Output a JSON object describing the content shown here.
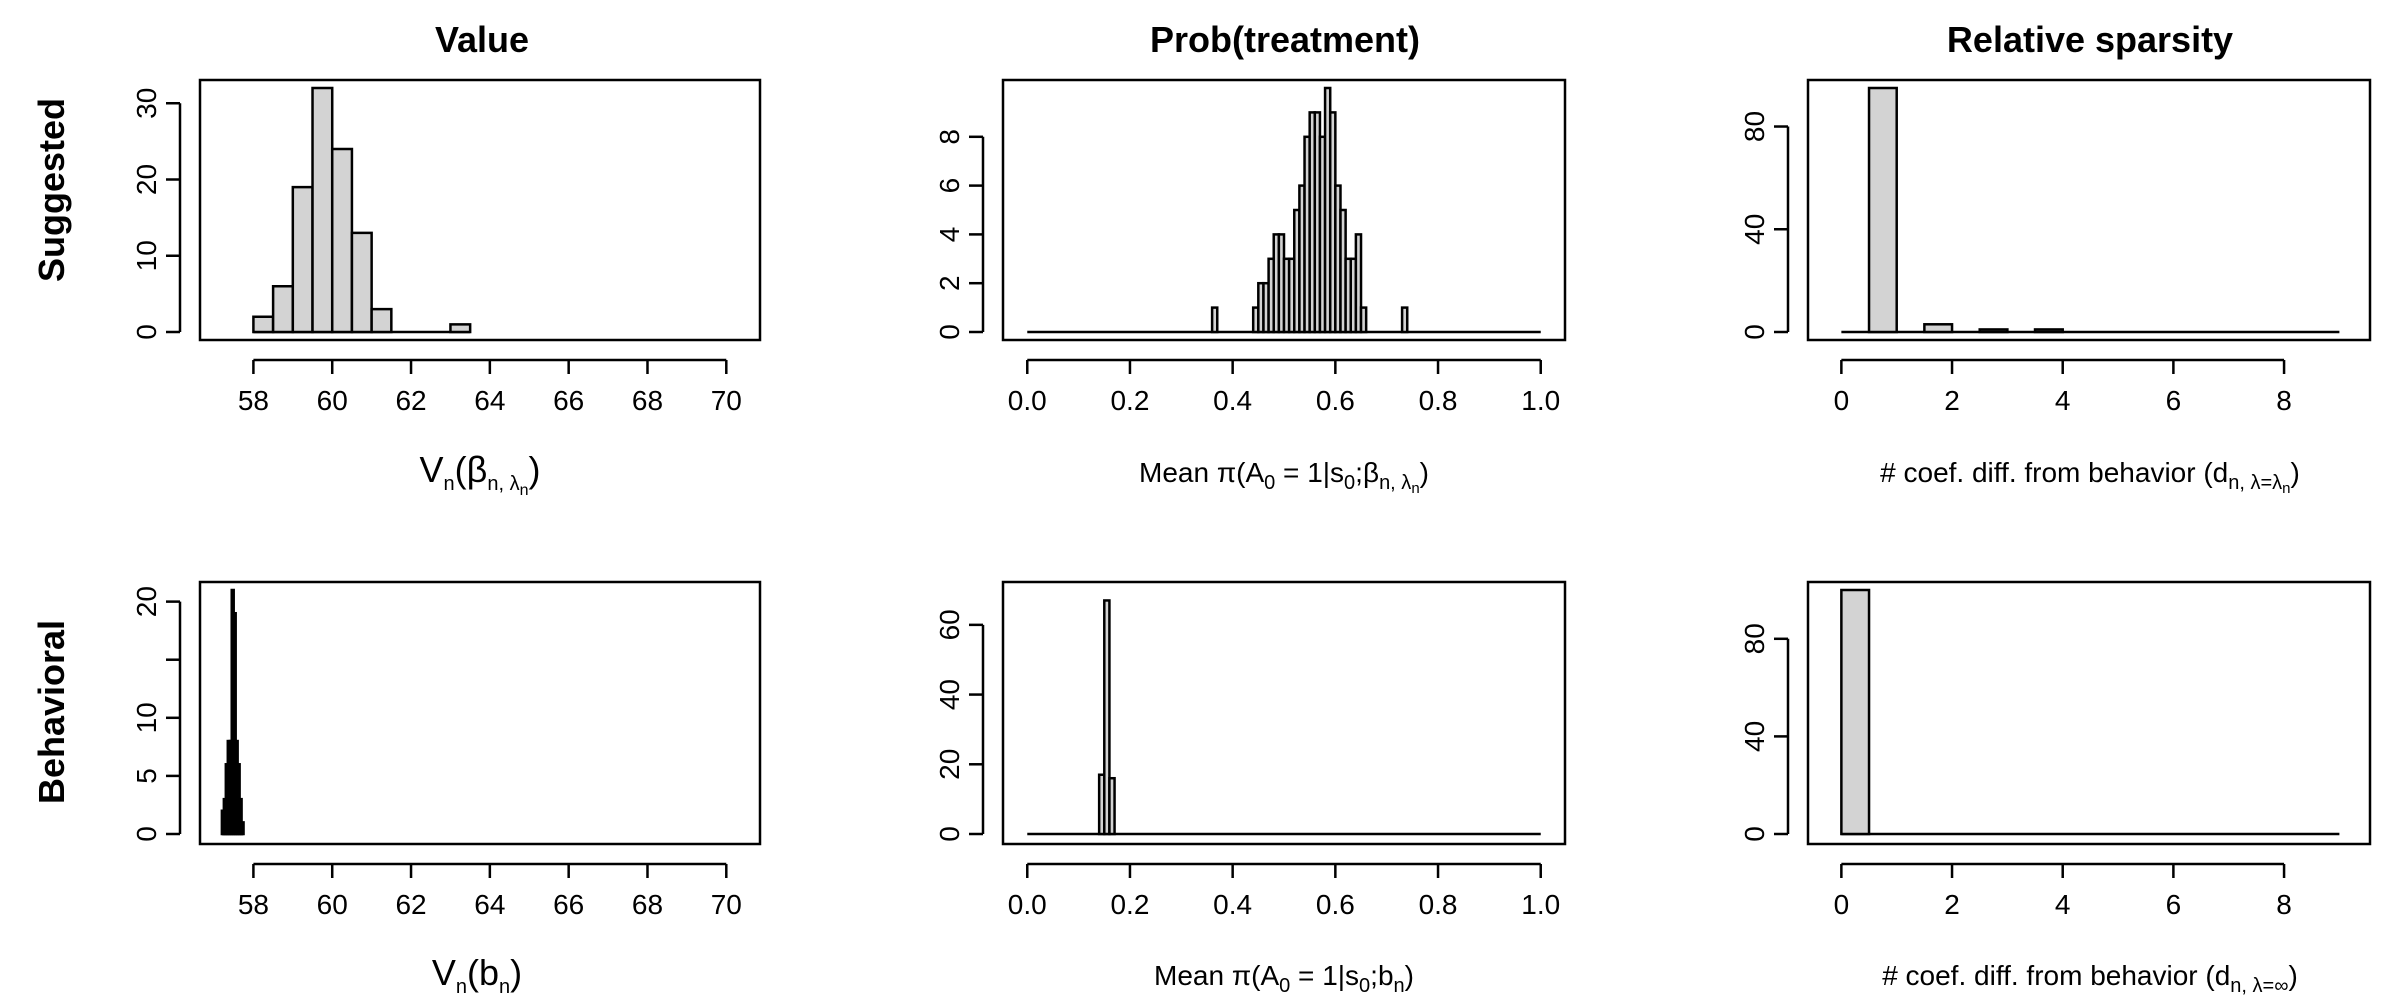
{
  "figure": {
    "col_titles": [
      "Value",
      "Prob(treatment)",
      "Relative sparsity"
    ],
    "row_titles": [
      "Suggested",
      "Behavioral"
    ]
  },
  "chart_data": [
    {
      "type": "bar",
      "title": "Value",
      "row": "Suggested",
      "xlabel": "V_n(β_{n, λ_n})",
      "xlim": [
        57,
        70.5
      ],
      "ylim": [
        0,
        32
      ],
      "xticks": [
        58,
        60,
        62,
        64,
        66,
        68,
        70
      ],
      "yticks": [
        0,
        10,
        20,
        30
      ],
      "bin_width": 0.5,
      "bin_starts": [
        58.0,
        58.5,
        59.0,
        59.5,
        60.0,
        60.5,
        61.0,
        61.5,
        62.0,
        62.5,
        63.0
      ],
      "values": [
        2,
        6,
        19,
        32,
        24,
        13,
        3,
        0,
        0,
        0,
        1
      ],
      "baseline_end": 63.5
    },
    {
      "type": "bar",
      "title": "Prob(treatment)",
      "row": "Suggested",
      "xlabel": "Mean π(A_0 = 1|s_0;β_{n, λ_n})",
      "xlim": [
        -0.02,
        1.02
      ],
      "ylim": [
        0,
        10
      ],
      "xticks": [
        0.0,
        0.2,
        0.4,
        0.6,
        0.8,
        1.0
      ],
      "xtick_labels": [
        "0.0",
        "0.2",
        "0.4",
        "0.6",
        "0.8",
        "1.0"
      ],
      "yticks": [
        0,
        2,
        4,
        6,
        8
      ],
      "bin_width": 0.01,
      "bin_starts": [
        0.36,
        0.44,
        0.45,
        0.46,
        0.47,
        0.48,
        0.49,
        0.5,
        0.51,
        0.52,
        0.53,
        0.54,
        0.55,
        0.56,
        0.57,
        0.58,
        0.59,
        0.6,
        0.61,
        0.62,
        0.63,
        0.64,
        0.65,
        0.66,
        0.67,
        0.73
      ],
      "values": [
        1,
        1,
        2,
        2,
        3,
        4,
        4,
        3,
        3,
        5,
        6,
        8,
        9,
        9,
        8,
        10,
        9,
        6,
        5,
        3,
        3,
        4,
        1,
        0,
        0,
        1
      ],
      "baseline_range": [
        0,
        1
      ]
    },
    {
      "type": "bar",
      "title": "Relative sparsity",
      "row": "Suggested",
      "xlabel": "# coef. diff. from behavior (d_{n, λ=λ_n})",
      "xlim": [
        -0.35,
        9.3
      ],
      "ylim": [
        0,
        95
      ],
      "xticks": [
        0,
        2,
        4,
        6,
        8
      ],
      "yticks": [
        0,
        40,
        80
      ],
      "bin_width": 0.5,
      "bin_starts": [
        0.5,
        1.5,
        2.5,
        3.5
      ],
      "values": [
        95,
        3,
        1,
        1
      ],
      "baseline_range": [
        0,
        9
      ]
    },
    {
      "type": "bar",
      "title": "Value",
      "row": "Behavioral",
      "xlabel": "V_n(b_n)",
      "xlim": [
        57,
        70.5
      ],
      "ylim": [
        0,
        21
      ],
      "xticks": [
        58,
        60,
        62,
        64,
        66,
        68,
        70
      ],
      "yticks": [
        0,
        5,
        10,
        15,
        20
      ],
      "ytick_labels": [
        "0",
        "5",
        "10",
        "",
        "20"
      ],
      "bin_width": 0.05,
      "bin_starts": [
        57.2,
        57.25,
        57.3,
        57.35,
        57.4,
        57.45,
        57.5,
        57.55,
        57.6,
        57.65,
        57.7
      ],
      "values": [
        2,
        3,
        6,
        8,
        8,
        21,
        19,
        8,
        6,
        3,
        1
      ],
      "fill": "#000000",
      "baseline_end": 57.75
    },
    {
      "type": "bar",
      "title": "Prob(treatment)",
      "row": "Behavioral",
      "xlabel": "Mean π(A_0 = 1|s_0;b_n)",
      "xlim": [
        -0.02,
        1.02
      ],
      "ylim": [
        0,
        70
      ],
      "xticks": [
        0.0,
        0.2,
        0.4,
        0.6,
        0.8,
        1.0
      ],
      "xtick_labels": [
        "0.0",
        "0.2",
        "0.4",
        "0.6",
        "0.8",
        "1.0"
      ],
      "yticks": [
        0,
        20,
        40,
        60
      ],
      "bin_width": 0.01,
      "bin_starts": [
        0.14,
        0.15,
        0.16
      ],
      "values": [
        17,
        67,
        16
      ],
      "baseline_range": [
        0,
        1
      ]
    },
    {
      "type": "bar",
      "title": "Relative sparsity",
      "row": "Behavioral",
      "xlabel": "# coef. diff. from behavior (d_{n, λ=∞})",
      "xlim": [
        -0.35,
        9.3
      ],
      "ylim": [
        0,
        100
      ],
      "xticks": [
        0,
        2,
        4,
        6,
        8
      ],
      "yticks": [
        0,
        40,
        80
      ],
      "bin_width": 0.5,
      "bin_starts": [
        0.0
      ],
      "values": [
        100
      ],
      "baseline_range": [
        0,
        9
      ]
    }
  ],
  "axis_labels": [
    {
      "pre": "V",
      "sub": "n",
      "mid": "(β",
      "sub2": "n, λ",
      "sub3": "n",
      "post": ")"
    },
    {
      "pre": "Mean π(A",
      "sub": "0",
      "mid": " = 1|s",
      "sub2": "0",
      "mid2": ";β",
      "sub3": "n, λ",
      "sub4": "n",
      "post": ")"
    },
    {
      "pre": "# coef. diff. from behavior (d",
      "sub": "n, λ=λ",
      "sub2": "n",
      "post": ")"
    },
    {
      "pre": "V",
      "sub": "n",
      "mid": "(b",
      "sub2": "n",
      "post": ")"
    },
    {
      "pre": "Mean π(A",
      "sub": "0",
      "mid": " = 1|s",
      "sub2": "0",
      "mid2": ";b",
      "sub3": "n",
      "post": ")"
    },
    {
      "pre": "# coef. diff. from behavior (d",
      "sub": "n, λ=∞",
      "post": ")"
    }
  ],
  "colors": {
    "bar_fill": "#d3d3d3",
    "bar_stroke": "#000000",
    "frame": "#000000"
  }
}
